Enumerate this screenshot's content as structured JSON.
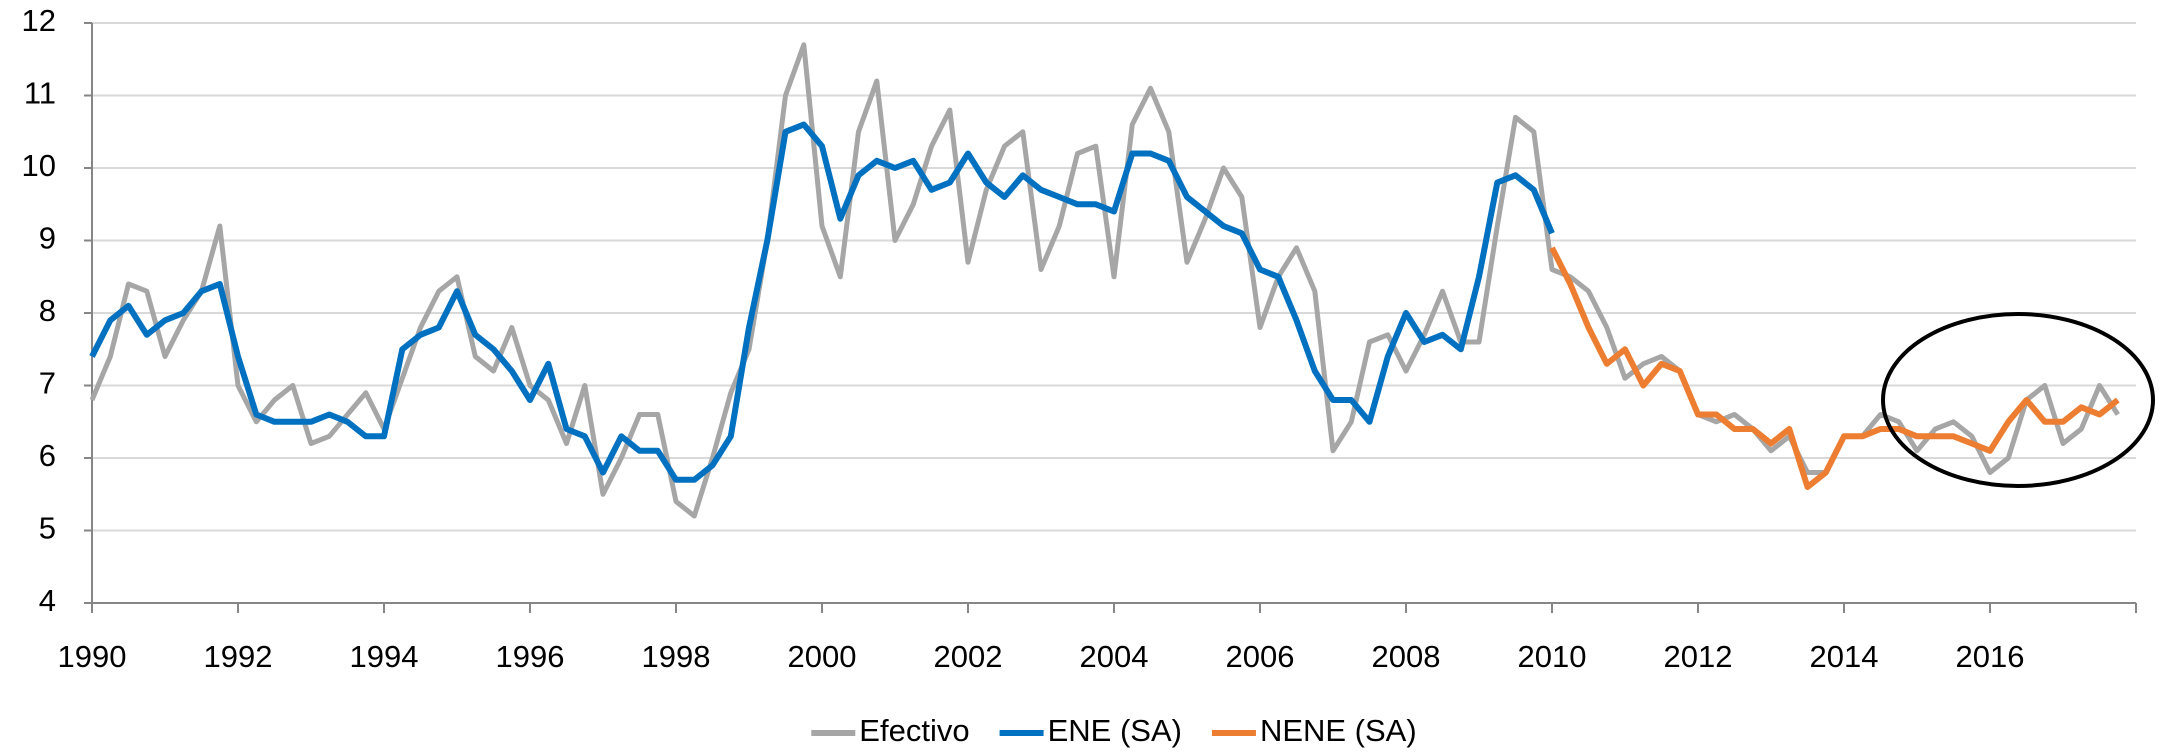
{
  "chart_data": {
    "type": "line",
    "x": [
      1990,
      1990.25,
      1990.5,
      1990.75,
      1991,
      1991.25,
      1991.5,
      1991.75,
      1992,
      1992.25,
      1992.5,
      1992.75,
      1993,
      1993.25,
      1993.5,
      1993.75,
      1994,
      1994.25,
      1994.5,
      1994.75,
      1995,
      1995.25,
      1995.5,
      1995.75,
      1996,
      1996.25,
      1996.5,
      1996.75,
      1997,
      1997.25,
      1997.5,
      1997.75,
      1998,
      1998.25,
      1998.5,
      1998.75,
      1999,
      1999.25,
      1999.5,
      1999.75,
      2000,
      2000.25,
      2000.5,
      2000.75,
      2001,
      2001.25,
      2001.5,
      2001.75,
      2002,
      2002.25,
      2002.5,
      2002.75,
      2003,
      2003.25,
      2003.5,
      2003.75,
      2004,
      2004.25,
      2004.5,
      2004.75,
      2005,
      2005.25,
      2005.5,
      2005.75,
      2006,
      2006.25,
      2006.5,
      2006.75,
      2007,
      2007.25,
      2007.5,
      2007.75,
      2008,
      2008.25,
      2008.5,
      2008.75,
      2009,
      2009.25,
      2009.5,
      2009.75,
      2010,
      2010.25,
      2010.5,
      2010.75,
      2011,
      2011.25,
      2011.5,
      2011.75,
      2012,
      2012.25,
      2012.5,
      2012.75,
      2013,
      2013.25,
      2013.5,
      2013.75,
      2014,
      2014.25,
      2014.5,
      2014.75,
      2015,
      2015.25,
      2015.5,
      2015.75,
      2016,
      2016.25,
      2016.5,
      2016.75,
      2017,
      2017.25,
      2017.5,
      2017.75
    ],
    "series": [
      {
        "name": "Efectivo",
        "color": "#a6a6a6",
        "width": 5,
        "values": [
          6.8,
          7.4,
          8.4,
          8.3,
          7.4,
          7.9,
          8.3,
          9.2,
          7.0,
          6.5,
          6.8,
          7.0,
          6.2,
          6.3,
          6.6,
          6.9,
          6.4,
          7.1,
          7.8,
          8.3,
          8.5,
          7.4,
          7.2,
          7.8,
          7.0,
          6.8,
          6.2,
          7.0,
          5.5,
          6.0,
          6.6,
          6.6,
          5.4,
          5.2,
          6.0,
          6.9,
          7.5,
          9.0,
          11.0,
          11.7,
          9.2,
          8.5,
          10.5,
          11.2,
          9.0,
          9.5,
          10.3,
          10.8,
          8.7,
          9.7,
          10.3,
          10.5,
          8.6,
          9.2,
          10.2,
          10.3,
          8.5,
          10.6,
          11.1,
          10.5,
          8.7,
          9.3,
          10.0,
          9.6,
          7.8,
          8.5,
          8.9,
          8.3,
          6.1,
          6.5,
          7.6,
          7.7,
          7.2,
          7.7,
          8.3,
          7.6,
          7.6,
          9.2,
          10.7,
          10.5,
          8.6,
          8.5,
          8.3,
          7.8,
          7.1,
          7.3,
          7.4,
          7.2,
          6.6,
          6.5,
          6.6,
          6.4,
          6.1,
          6.3,
          5.8,
          5.8,
          6.3,
          6.3,
          6.6,
          6.5,
          6.1,
          6.4,
          6.5,
          6.3,
          5.8,
          6.0,
          6.8,
          7.0,
          6.2,
          6.4,
          7.0,
          6.6
        ]
      },
      {
        "name": "ENE (SA)",
        "color": "#0070c0",
        "width": 6,
        "values": [
          7.4,
          7.9,
          8.1,
          7.7,
          7.9,
          8.0,
          8.3,
          8.4,
          7.4,
          6.6,
          6.5,
          6.5,
          6.5,
          6.6,
          6.5,
          6.3,
          6.3,
          7.5,
          7.7,
          7.8,
          8.3,
          7.7,
          7.5,
          7.2,
          6.8,
          7.3,
          6.4,
          6.3,
          5.8,
          6.3,
          6.1,
          6.1,
          5.7,
          5.7,
          5.9,
          6.3,
          7.8,
          9.0,
          10.5,
          10.6,
          10.3,
          9.3,
          9.9,
          10.1,
          10.0,
          10.1,
          9.7,
          9.8,
          10.2,
          9.8,
          9.6,
          9.9,
          9.7,
          9.6,
          9.5,
          9.5,
          9.4,
          10.2,
          10.2,
          10.1,
          9.6,
          9.4,
          9.2,
          9.1,
          8.6,
          8.5,
          7.9,
          7.2,
          6.8,
          6.8,
          6.5,
          7.4,
          8.0,
          7.6,
          7.7,
          7.5,
          8.5,
          9.8,
          9.9,
          9.7,
          9.1,
          null,
          null,
          null,
          null,
          null,
          null,
          null,
          null,
          null,
          null,
          null,
          null,
          null,
          null,
          null,
          null,
          null,
          null,
          null,
          null,
          null,
          null,
          null,
          null,
          null,
          null,
          null,
          null,
          null,
          null,
          null
        ]
      },
      {
        "name": "NENE (SA)",
        "color": "#ed7d31",
        "width": 6,
        "values": [
          null,
          null,
          null,
          null,
          null,
          null,
          null,
          null,
          null,
          null,
          null,
          null,
          null,
          null,
          null,
          null,
          null,
          null,
          null,
          null,
          null,
          null,
          null,
          null,
          null,
          null,
          null,
          null,
          null,
          null,
          null,
          null,
          null,
          null,
          null,
          null,
          null,
          null,
          null,
          null,
          null,
          null,
          null,
          null,
          null,
          null,
          null,
          null,
          null,
          null,
          null,
          null,
          null,
          null,
          null,
          null,
          null,
          null,
          null,
          null,
          null,
          null,
          null,
          null,
          null,
          null,
          null,
          null,
          null,
          null,
          null,
          null,
          null,
          null,
          null,
          null,
          null,
          null,
          null,
          null,
          8.9,
          8.4,
          7.8,
          7.3,
          7.5,
          7.0,
          7.3,
          7.2,
          6.6,
          6.6,
          6.4,
          6.4,
          6.2,
          6.4,
          5.6,
          5.8,
          6.3,
          6.3,
          6.4,
          6.4,
          6.3,
          6.3,
          6.3,
          6.2,
          6.1,
          6.5,
          6.8,
          6.5,
          6.5,
          6.7,
          6.6,
          6.8
        ]
      }
    ],
    "xlim": [
      1990,
      2018
    ],
    "xticks": [
      1990,
      1992,
      1994,
      1996,
      1998,
      2000,
      2002,
      2004,
      2006,
      2008,
      2010,
      2012,
      2014,
      2016
    ],
    "ylim": [
      4,
      12
    ],
    "yticks": [
      4,
      5,
      6,
      7,
      8,
      9,
      10,
      11,
      12
    ],
    "grid": true,
    "legend": "bottom"
  }
}
